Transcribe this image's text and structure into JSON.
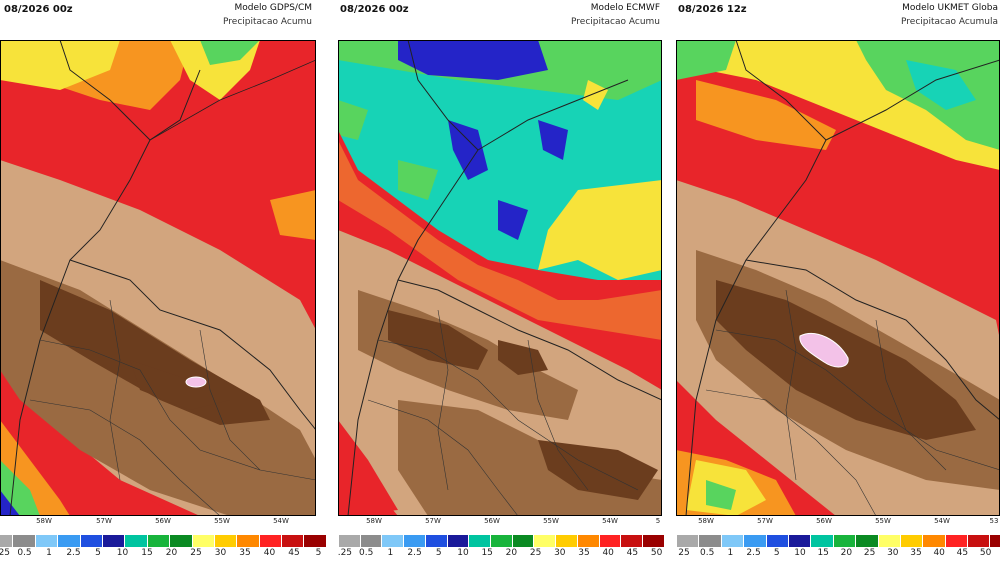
{
  "panels": [
    {
      "date": "08/2026 00z",
      "model": "Modelo GDPS/CM",
      "variable": "Precipitacao Acumu",
      "lon_ticks": [
        "58W",
        "57W",
        "56W",
        "55W",
        "54W"
      ]
    },
    {
      "date": "08/2026 00z",
      "model": "Modelo ECMWF",
      "variable": "Precipitacao Acumu",
      "lon_ticks": [
        "58W",
        "57W",
        "56W",
        "55W",
        "54W",
        "5"
      ]
    },
    {
      "date": "08/2026 12z",
      "model": "Modelo UKMET Globa",
      "variable": "Precipitacao Acumula",
      "lon_ticks": [
        "58W",
        "57W",
        "56W",
        "55W",
        "54W",
        "53"
      ]
    }
  ],
  "colorbar": {
    "labels_0": [
      "0.25",
      "0.5",
      "1",
      "2.5",
      "5",
      "10",
      "15",
      "20",
      "25",
      "30",
      "35",
      "40",
      "45",
      "5"
    ],
    "labels_1": [
      "0.25",
      "0.5",
      "1",
      "2.5",
      "5",
      "10",
      "15",
      "20",
      "25",
      "30",
      "35",
      "40",
      "45",
      "50"
    ],
    "labels_2": [
      "25",
      "0.5",
      "1",
      "2.5",
      "5",
      "10",
      "15",
      "20",
      "25",
      "30",
      "35",
      "40",
      "45",
      "50",
      "5"
    ],
    "colors": [
      "#a9a9a9",
      "#8c8c8c",
      "#7fc8f8",
      "#3a9bf2",
      "#1f4fe0",
      "#1a1a9a",
      "#00c4a0",
      "#18b43c",
      "#0a8a22",
      "#ffff66",
      "#ffcc00",
      "#ff8800",
      "#ff2222",
      "#c81010",
      "#9a0000"
    ],
    "map_colors": {
      "dark_brown": "#6b3d1e",
      "mid_brown": "#9a6a42",
      "tan": "#d2a57e",
      "red": "#e8252a",
      "orange": "#f79520",
      "yellow": "#f7e33a",
      "green": "#58d45e",
      "cyan": "#17d3b6",
      "blue": "#2424c8",
      "pink": "#f3c2e8"
    }
  }
}
